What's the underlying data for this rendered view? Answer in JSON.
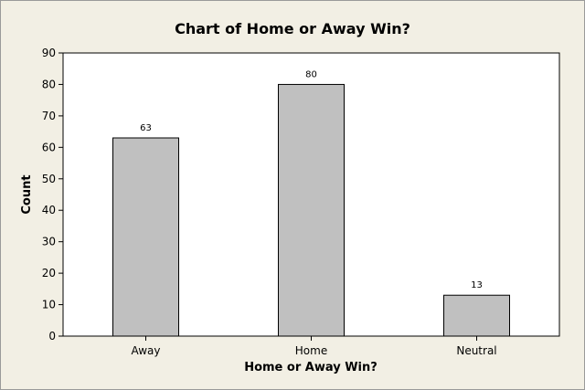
{
  "chart_data": {
    "type": "bar",
    "title": "Chart of Home or Away Win?",
    "xlabel": "Home or Away Win?",
    "ylabel": "Count",
    "categories": [
      "Away",
      "Home",
      "Neutral"
    ],
    "values": [
      63,
      80,
      13
    ],
    "data_labels": [
      "63",
      "80",
      "13"
    ],
    "ylim": [
      0,
      90
    ],
    "yticks": [
      0,
      10,
      20,
      30,
      40,
      50,
      60,
      70,
      80,
      90
    ],
    "grid": false,
    "legend": "none",
    "colors": {
      "bar_fill": "#c0c0c0",
      "bar_stroke": "#000000",
      "plot_background": "#ffffff",
      "figure_background": "#f2efe4"
    }
  }
}
